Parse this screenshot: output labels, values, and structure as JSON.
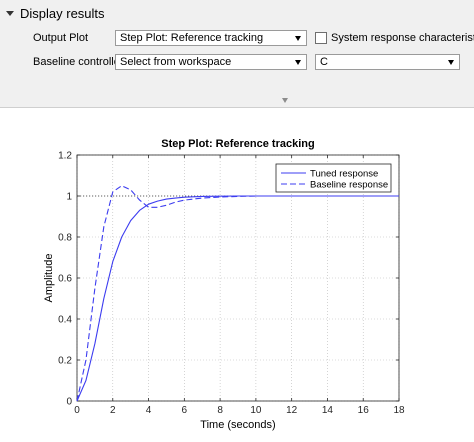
{
  "section": {
    "title": "Display results"
  },
  "output_plot": {
    "label": "Output Plot",
    "value": "Step Plot: Reference tracking"
  },
  "system_response": {
    "label": "System response characteristics",
    "checked": false
  },
  "baseline": {
    "label": "Baseline controller",
    "value": "Select from workspace",
    "variable": "C"
  },
  "chart_data": {
    "type": "line",
    "title": "Step Plot: Reference tracking",
    "xlabel": "Time (seconds)",
    "ylabel": "Amplitude",
    "xlim": [
      0,
      18
    ],
    "ylim": [
      0,
      1.2
    ],
    "xticks": [
      "0",
      "2",
      "4",
      "6",
      "8",
      "10",
      "12",
      "14",
      "16",
      "18"
    ],
    "yticks": [
      "0",
      "0.2",
      "0.4",
      "0.6",
      "0.8",
      "1",
      "1.2"
    ],
    "grid": true,
    "legend_position": "top-right",
    "reference_line": 1,
    "series": [
      {
        "name": "Tuned response",
        "style": "solid",
        "color": "#3c3cf0",
        "x": [
          0,
          0.5,
          1,
          1.5,
          2,
          2.5,
          3,
          3.5,
          4,
          4.5,
          5,
          5.5,
          6,
          6.5,
          7,
          8,
          9,
          10,
          12,
          14,
          16,
          18
        ],
        "y": [
          0,
          0.1,
          0.28,
          0.5,
          0.68,
          0.8,
          0.88,
          0.93,
          0.96,
          0.975,
          0.985,
          0.99,
          0.994,
          0.996,
          0.998,
          0.999,
          1,
          1,
          1,
          1,
          1,
          1
        ]
      },
      {
        "name": "Baseline response",
        "style": "dashed",
        "color": "#3c3cf0",
        "x": [
          0,
          0.5,
          1,
          1.5,
          2,
          2.5,
          3,
          3.5,
          4,
          4.5,
          5,
          5.5,
          6,
          6.5,
          7,
          8,
          9,
          10,
          12,
          14,
          16,
          18
        ],
        "y": [
          0,
          0.2,
          0.55,
          0.85,
          1.02,
          1.05,
          1.03,
          0.98,
          0.945,
          0.945,
          0.955,
          0.97,
          0.98,
          0.985,
          0.99,
          0.995,
          0.998,
          1,
          1,
          1,
          1,
          1
        ]
      }
    ]
  }
}
